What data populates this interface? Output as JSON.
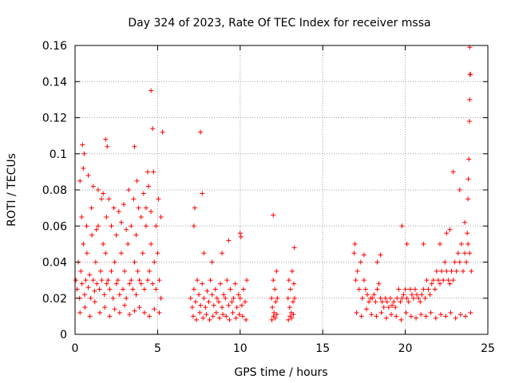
{
  "chart_data": {
    "type": "scatter",
    "title": "Day 324 of 2023, Rate Of TEC Index for receiver mssa",
    "xlabel": "GPS time / hours",
    "ylabel": "ROTI / TECUs",
    "xlim": [
      0,
      25
    ],
    "ylim": [
      0,
      0.16
    ],
    "x_ticks": [
      "0",
      "5",
      "10",
      "15",
      "20",
      "25"
    ],
    "y_ticks": [
      "0",
      "0.02",
      "0.04",
      "0.06",
      "0.08",
      "0.1",
      "0.12",
      "0.14",
      "0.16"
    ],
    "grid": true,
    "legend": "none",
    "marker": "plus",
    "color": "#ff0000",
    "series": [
      {
        "x": [
          0.05,
          0.12,
          0.2,
          0.28,
          0.35,
          0.42,
          0.5,
          0.58,
          0.65,
          0.72,
          0.8,
          0.88,
          0.95,
          1.02,
          1.1,
          1.18,
          1.25,
          1.32,
          1.4,
          1.48,
          1.55,
          1.62,
          1.7,
          1.78,
          1.85,
          1.92,
          2.0,
          2.1,
          2.2,
          2.3,
          2.4,
          2.5,
          2.6,
          2.7,
          2.8,
          2.9,
          3.0,
          3.1,
          3.2,
          3.3,
          3.4,
          3.5,
          3.6,
          3.7,
          3.8,
          3.9,
          4.0,
          4.1,
          4.2,
          4.3,
          4.4,
          4.5,
          4.6,
          4.7,
          4.8,
          4.9,
          5.0,
          5.1,
          5.2,
          0.3,
          0.6,
          0.9,
          1.2,
          1.5,
          1.8,
          2.1,
          2.4,
          2.7,
          3.0,
          3.3,
          3.6,
          3.9,
          4.2,
          4.5,
          4.8,
          5.1,
          0.4,
          0.7,
          1.0,
          1.3,
          1.6,
          1.9,
          2.2,
          2.5,
          2.8,
          3.1,
          3.4,
          3.7,
          4.0,
          4.3,
          4.6,
          4.9,
          5.2,
          0.45,
          0.55,
          1.85,
          1.95,
          3.6,
          3.75,
          4.4,
          4.6,
          4.7,
          5.3,
          0.3,
          0.5,
          0.8,
          1.1,
          1.4,
          1.7,
          2.05,
          2.35,
          2.65,
          2.95,
          3.25,
          3.55,
          3.85,
          4.15,
          4.45,
          4.75,
          5.05
        ],
        "y": [
          0.03,
          0.025,
          0.04,
          0.02,
          0.035,
          0.028,
          0.05,
          0.022,
          0.03,
          0.045,
          0.026,
          0.033,
          0.02,
          0.055,
          0.03,
          0.024,
          0.04,
          0.028,
          0.06,
          0.025,
          0.035,
          0.03,
          0.05,
          0.022,
          0.045,
          0.028,
          0.03,
          0.025,
          0.035,
          0.02,
          0.04,
          0.028,
          0.03,
          0.022,
          0.045,
          0.025,
          0.035,
          0.02,
          0.05,
          0.028,
          0.03,
          0.025,
          0.04,
          0.022,
          0.035,
          0.03,
          0.028,
          0.045,
          0.025,
          0.06,
          0.03,
          0.035,
          0.05,
          0.028,
          0.04,
          0.025,
          0.045,
          0.03,
          0.02,
          0.012,
          0.015,
          0.01,
          0.018,
          0.012,
          0.015,
          0.01,
          0.014,
          0.012,
          0.016,
          0.011,
          0.013,
          0.015,
          0.012,
          0.01,
          0.014,
          0.012,
          0.065,
          0.06,
          0.07,
          0.058,
          0.075,
          0.065,
          0.06,
          0.055,
          0.062,
          0.058,
          0.06,
          0.055,
          0.065,
          0.07,
          0.068,
          0.06,
          0.065,
          0.105,
          0.1,
          0.108,
          0.104,
          0.104,
          0.085,
          0.09,
          0.135,
          0.114,
          0.112,
          0.085,
          0.092,
          0.088,
          0.082,
          0.08,
          0.078,
          0.075,
          0.07,
          0.068,
          0.072,
          0.08,
          0.075,
          0.07,
          0.078,
          0.082,
          0.09,
          0.075
        ]
      },
      {
        "x": [
          7.0,
          7.1,
          7.2,
          7.3,
          7.4,
          7.5,
          7.6,
          7.7,
          7.8,
          7.9,
          8.0,
          8.1,
          8.2,
          8.3,
          8.4,
          8.5,
          8.6,
          8.7,
          8.8,
          8.9,
          9.0,
          9.1,
          9.2,
          9.3,
          9.4,
          9.5,
          9.6,
          9.7,
          9.8,
          9.9,
          10.0,
          10.1,
          10.2,
          10.3,
          10.4,
          7.15,
          7.35,
          7.55,
          7.75,
          7.95,
          8.15,
          8.35,
          8.55,
          8.75,
          8.95,
          9.15,
          9.35,
          9.55,
          9.75,
          9.95,
          10.15,
          10.35,
          7.2,
          7.25,
          7.6,
          7.7,
          9.3,
          10.0,
          10.05,
          7.8,
          8.3,
          8.9
        ],
        "y": [
          0.02,
          0.015,
          0.025,
          0.018,
          0.03,
          0.022,
          0.016,
          0.028,
          0.02,
          0.015,
          0.024,
          0.018,
          0.03,
          0.022,
          0.016,
          0.025,
          0.02,
          0.018,
          0.028,
          0.015,
          0.022,
          0.02,
          0.03,
          0.016,
          0.025,
          0.018,
          0.02,
          0.028,
          0.015,
          0.022,
          0.02,
          0.016,
          0.025,
          0.018,
          0.03,
          0.01,
          0.008,
          0.012,
          0.009,
          0.011,
          0.008,
          0.01,
          0.012,
          0.009,
          0.011,
          0.01,
          0.008,
          0.012,
          0.009,
          0.011,
          0.01,
          0.008,
          0.06,
          0.07,
          0.112,
          0.078,
          0.052,
          0.056,
          0.054,
          0.045,
          0.04,
          0.045
        ]
      },
      {
        "x": [
          11.9,
          11.95,
          12.0,
          12.05,
          12.1,
          12.15,
          12.2,
          12.25,
          11.92,
          12.02,
          12.12,
          12.22,
          12.0,
          12.9,
          12.95,
          13.0,
          13.05,
          13.1,
          13.15,
          13.2,
          13.25,
          13.3,
          12.92,
          13.02,
          13.12,
          13.22,
          13.28
        ],
        "y": [
          0.02,
          0.015,
          0.03,
          0.012,
          0.025,
          0.018,
          0.035,
          0.02,
          0.008,
          0.01,
          0.009,
          0.011,
          0.066,
          0.02,
          0.03,
          0.015,
          0.025,
          0.012,
          0.035,
          0.018,
          0.028,
          0.02,
          0.008,
          0.01,
          0.009,
          0.011,
          0.048
        ]
      },
      {
        "x": [
          16.9,
          17.0,
          17.1,
          17.2,
          17.3,
          17.4,
          17.5,
          17.6,
          17.7,
          17.8,
          17.9,
          18.0,
          18.1,
          18.2,
          18.3,
          18.4,
          18.5,
          18.6,
          18.7,
          18.8,
          18.9,
          19.0,
          19.1,
          19.2,
          19.3,
          19.4,
          19.5,
          19.6,
          19.7,
          19.8,
          19.9,
          20.0,
          20.1,
          20.2,
          20.3,
          20.4,
          20.5,
          20.6,
          20.7,
          20.8,
          20.9,
          21.0,
          21.1,
          21.2,
          21.3,
          21.4,
          21.5,
          21.6,
          21.7,
          21.8,
          21.9,
          22.0,
          22.1,
          22.2,
          22.3,
          22.4,
          22.5,
          22.6,
          22.7,
          22.8,
          22.9,
          23.0,
          23.1,
          23.2,
          23.3,
          23.4,
          23.5,
          23.6,
          23.7,
          23.8,
          23.9,
          24.0,
          17.05,
          17.35,
          17.65,
          17.95,
          18.25,
          18.55,
          18.85,
          19.15,
          19.45,
          19.75,
          20.05,
          20.35,
          20.65,
          20.95,
          21.25,
          21.55,
          21.85,
          22.15,
          22.45,
          22.75,
          23.05,
          23.35,
          23.65,
          23.95,
          16.95,
          17.5,
          18.3,
          18.5,
          19.8,
          20.1,
          21.1,
          22.1,
          22.5,
          22.7,
          22.9,
          23.3,
          23.6,
          23.75,
          23.8,
          23.82,
          23.85,
          23.9,
          23.88,
          23.92
        ],
        "y": [
          0.045,
          0.03,
          0.035,
          0.025,
          0.04,
          0.02,
          0.03,
          0.025,
          0.022,
          0.018,
          0.02,
          0.02,
          0.022,
          0.018,
          0.025,
          0.028,
          0.02,
          0.018,
          0.015,
          0.02,
          0.018,
          0.015,
          0.02,
          0.016,
          0.018,
          0.015,
          0.02,
          0.025,
          0.018,
          0.02,
          0.022,
          0.025,
          0.02,
          0.018,
          0.025,
          0.022,
          0.02,
          0.025,
          0.022,
          0.02,
          0.018,
          0.022,
          0.025,
          0.02,
          0.03,
          0.025,
          0.022,
          0.028,
          0.03,
          0.025,
          0.035,
          0.03,
          0.028,
          0.035,
          0.03,
          0.04,
          0.035,
          0.03,
          0.028,
          0.035,
          0.03,
          0.04,
          0.035,
          0.045,
          0.04,
          0.05,
          0.035,
          0.045,
          0.04,
          0.05,
          0.045,
          0.035,
          0.012,
          0.01,
          0.014,
          0.011,
          0.01,
          0.012,
          0.009,
          0.011,
          0.01,
          0.008,
          0.012,
          0.01,
          0.009,
          0.011,
          0.01,
          0.012,
          0.009,
          0.011,
          0.01,
          0.012,
          0.009,
          0.011,
          0.01,
          0.012,
          0.05,
          0.044,
          0.04,
          0.044,
          0.06,
          0.05,
          0.05,
          0.05,
          0.056,
          0.058,
          0.09,
          0.08,
          0.062,
          0.056,
          0.075,
          0.086,
          0.097,
          0.13,
          0.118,
          0.144
        ]
      }
    ],
    "outliers": {
      "x": [
        23.9,
        23.95
      ],
      "y": [
        0.159,
        0.144
      ]
    }
  }
}
